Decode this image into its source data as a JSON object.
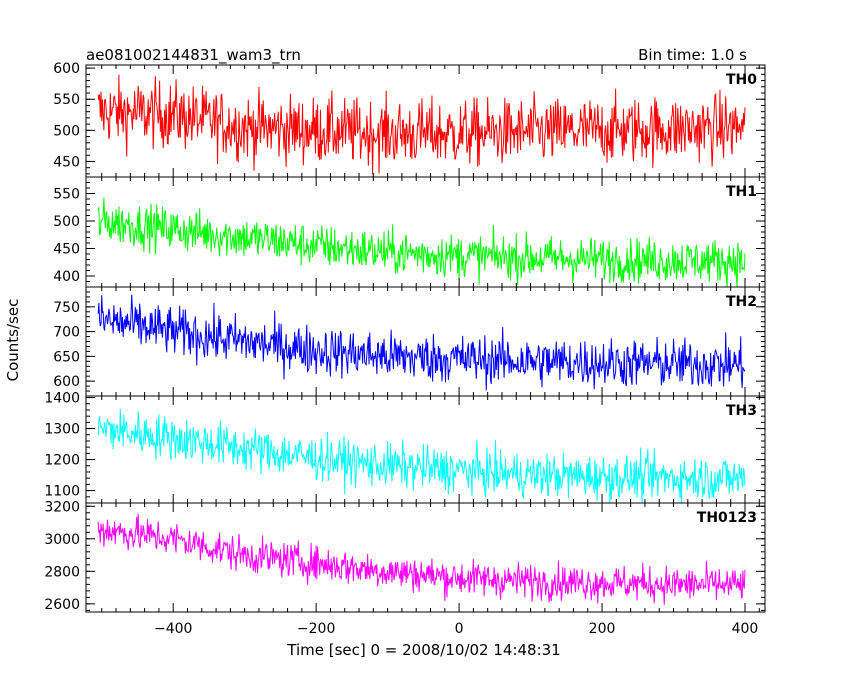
{
  "header": {
    "title": "ae081002144831_wam3_trn",
    "bin_time": "Bin time: 1.0 s"
  },
  "xlabel": "Time [sec] 0 = 2008/10/02 14:48:31",
  "ylabel": "Counts/sec",
  "chart_data": {
    "type": "line",
    "x_range": [
      -505,
      400
    ],
    "x_step": 1,
    "xlim": [
      -522,
      428
    ],
    "xticks": [
      -400,
      -200,
      0,
      200,
      400
    ],
    "grid": false,
    "legend": "none",
    "panels": [
      {
        "name": "TH0",
        "color": "#ff0000",
        "ylim": [
          425,
          605
        ],
        "yticks": [
          450,
          500,
          550,
          600
        ],
        "trend": [
          [
            -505,
            530
          ],
          [
            -400,
            525
          ],
          [
            -300,
            505
          ],
          [
            -200,
            500
          ],
          [
            -100,
            495
          ],
          [
            0,
            495
          ],
          [
            100,
            497
          ],
          [
            200,
            500
          ],
          [
            300,
            502
          ],
          [
            400,
            505
          ]
        ],
        "noise_sd": 27
      },
      {
        "name": "TH1",
        "color": "#00ff00",
        "ylim": [
          380,
          580
        ],
        "yticks": [
          400,
          450,
          500,
          550
        ],
        "trend": [
          [
            -505,
            500
          ],
          [
            -400,
            485
          ],
          [
            -300,
            470
          ],
          [
            -200,
            455
          ],
          [
            -100,
            443
          ],
          [
            0,
            437
          ],
          [
            100,
            433
          ],
          [
            200,
            430
          ],
          [
            300,
            428
          ],
          [
            400,
            427
          ]
        ],
        "noise_sd": 20
      },
      {
        "name": "TH2",
        "color": "#0000ff",
        "ylim": [
          570,
          790
        ],
        "yticks": [
          600,
          650,
          700,
          750
        ],
        "trend": [
          [
            -505,
            725
          ],
          [
            -400,
            700
          ],
          [
            -300,
            680
          ],
          [
            -200,
            662
          ],
          [
            -100,
            650
          ],
          [
            0,
            645
          ],
          [
            100,
            640
          ],
          [
            200,
            637
          ],
          [
            300,
            635
          ],
          [
            400,
            633
          ]
        ],
        "noise_sd": 25
      },
      {
        "name": "TH3",
        "color": "#00ffff",
        "ylim": [
          1060,
          1405
        ],
        "yticks": [
          1100,
          1200,
          1300,
          1400
        ],
        "trend": [
          [
            -505,
            1300
          ],
          [
            -400,
            1270
          ],
          [
            -300,
            1235
          ],
          [
            -200,
            1205
          ],
          [
            -100,
            1180
          ],
          [
            0,
            1165
          ],
          [
            100,
            1150
          ],
          [
            200,
            1145
          ],
          [
            300,
            1142
          ],
          [
            400,
            1140
          ]
        ],
        "noise_sd": 36
      },
      {
        "name": "TH0123",
        "color": "#ff00ff",
        "ylim": [
          2550,
          3220
        ],
        "yticks": [
          2600,
          2800,
          3000,
          3200
        ],
        "trend": [
          [
            -505,
            3060
          ],
          [
            -400,
            3000
          ],
          [
            -300,
            2900
          ],
          [
            -200,
            2850
          ],
          [
            -100,
            2800
          ],
          [
            0,
            2760
          ],
          [
            100,
            2740
          ],
          [
            200,
            2730
          ],
          [
            300,
            2720
          ],
          [
            400,
            2715
          ]
        ],
        "noise_sd": 55
      }
    ]
  }
}
